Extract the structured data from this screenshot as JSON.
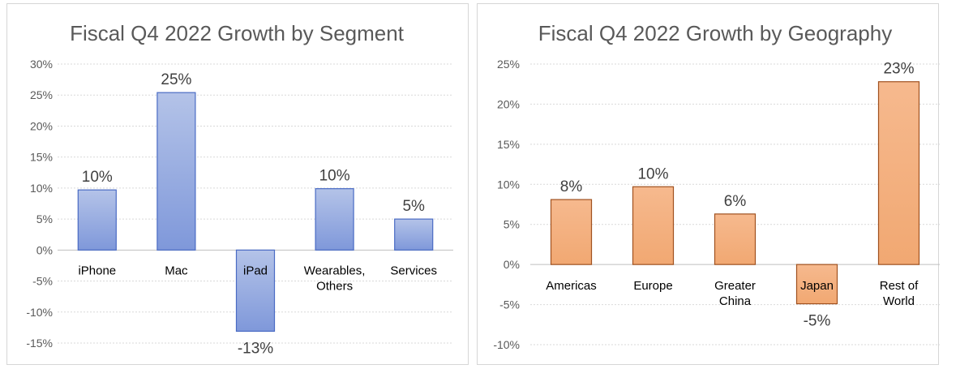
{
  "chart_data": [
    {
      "type": "bar",
      "title": "Fiscal Q4 2022 Growth by Segment",
      "categories": [
        [
          "iPhone"
        ],
        [
          "Mac"
        ],
        [
          "iPad"
        ],
        [
          "Wearables,",
          "Others"
        ],
        [
          "Services"
        ]
      ],
      "values": [
        10,
        25,
        -13,
        10,
        5
      ],
      "data_labels": [
        "10%",
        "25%",
        "-13%",
        "10%",
        "5%"
      ],
      "bar_values": [
        9.7,
        25.4,
        -13.1,
        9.9,
        5.0
      ],
      "ylim": [
        -15,
        30
      ],
      "yticks": [
        30,
        25,
        20,
        15,
        10,
        5,
        0,
        -5,
        -10,
        -15
      ],
      "ytick_labels": [
        "30%",
        "25%",
        "20%",
        "15%",
        "10%",
        "5%",
        "0%",
        "-5%",
        "-10%",
        "-15%"
      ],
      "grid": true,
      "colors": {
        "fill_top": "#b4c3e8",
        "fill_bottom": "#7f98da",
        "stroke": "#4a6bc4"
      }
    },
    {
      "type": "bar",
      "title": "Fiscal Q4 2022 Growth by Geography",
      "categories": [
        [
          "Americas"
        ],
        [
          "Europe"
        ],
        [
          "Greater",
          "China"
        ],
        [
          "Japan"
        ],
        [
          "Rest of",
          "World"
        ]
      ],
      "values": [
        8,
        10,
        6,
        -5,
        23
      ],
      "data_labels": [
        "8%",
        "10%",
        "6%",
        "-5%",
        "23%"
      ],
      "bar_values": [
        8.1,
        9.7,
        6.3,
        -4.9,
        22.8
      ],
      "ylim": [
        -10,
        25
      ],
      "yticks": [
        25,
        20,
        15,
        10,
        5,
        0,
        -5,
        -10
      ],
      "ytick_labels": [
        "25%",
        "20%",
        "15%",
        "10%",
        "5%",
        "0%",
        "-5%",
        "-10%"
      ],
      "grid": true,
      "colors": {
        "fill_top": "#f6b98e",
        "fill_bottom": "#f1a872",
        "stroke": "#a0511f"
      }
    }
  ]
}
